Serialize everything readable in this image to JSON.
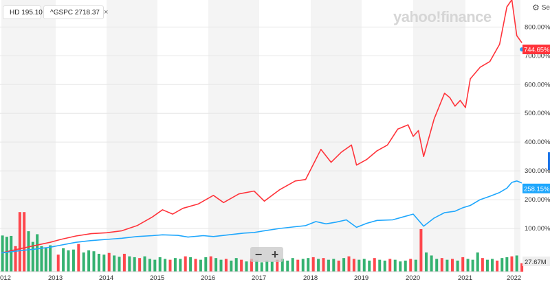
{
  "legend": [
    {
      "symbol": "HD",
      "value": "195.10",
      "color": "#ff333a"
    },
    {
      "symbol": "^GSPC",
      "value": "2718.37",
      "color": "#1ea7fd",
      "close": "×"
    }
  ],
  "brand": "yahoo!finance",
  "settings_label": "Set",
  "zoom": {
    "minus": "−",
    "plus": "+"
  },
  "volume_label": "27.67M",
  "chart_data": {
    "type": "line",
    "x_ticks": [
      "012",
      "2013",
      "2014",
      "2015",
      "2016",
      "2017",
      "2018",
      "2019",
      "2020",
      "2021",
      "2022"
    ],
    "y_ticks": [
      "100.00%",
      "200.00%",
      "300.00%",
      "400.00%",
      "500.00%",
      "600.00%",
      "700.00%",
      "800.00%"
    ],
    "ylim": [
      0,
      900
    ],
    "xlim": [
      2012.0,
      2022.3
    ],
    "series": [
      {
        "name": "HD",
        "color": "#ff333a",
        "last_label": "744.65%",
        "points": [
          [
            2012.0,
            15
          ],
          [
            2012.3,
            28
          ],
          [
            2012.6,
            40
          ],
          [
            2012.9,
            52
          ],
          [
            2013.1,
            62
          ],
          [
            2013.4,
            74
          ],
          [
            2013.7,
            82
          ],
          [
            2014.0,
            85
          ],
          [
            2014.3,
            92
          ],
          [
            2014.6,
            110
          ],
          [
            2014.9,
            140
          ],
          [
            2015.1,
            165
          ],
          [
            2015.3,
            150
          ],
          [
            2015.5,
            170
          ],
          [
            2015.8,
            185
          ],
          [
            2016.1,
            215
          ],
          [
            2016.3,
            190
          ],
          [
            2016.6,
            220
          ],
          [
            2016.9,
            230
          ],
          [
            2017.1,
            195
          ],
          [
            2017.4,
            235
          ],
          [
            2017.7,
            265
          ],
          [
            2017.9,
            270
          ],
          [
            2018.1,
            340
          ],
          [
            2018.2,
            375
          ],
          [
            2018.4,
            330
          ],
          [
            2018.6,
            365
          ],
          [
            2018.8,
            390
          ],
          [
            2018.9,
            320
          ],
          [
            2019.1,
            340
          ],
          [
            2019.3,
            370
          ],
          [
            2019.5,
            390
          ],
          [
            2019.7,
            445
          ],
          [
            2019.9,
            460
          ],
          [
            2020.0,
            420
          ],
          [
            2020.1,
            440
          ],
          [
            2020.2,
            350
          ],
          [
            2020.4,
            480
          ],
          [
            2020.6,
            570
          ],
          [
            2020.7,
            555
          ],
          [
            2020.8,
            525
          ],
          [
            2020.9,
            545
          ],
          [
            2021.0,
            520
          ],
          [
            2021.1,
            620
          ],
          [
            2021.3,
            660
          ],
          [
            2021.5,
            680
          ],
          [
            2021.7,
            740
          ],
          [
            2021.85,
            870
          ],
          [
            2021.95,
            895
          ],
          [
            2022.05,
            770
          ],
          [
            2022.15,
            745
          ]
        ]
      },
      {
        "name": "^GSPC",
        "color": "#1ea7fd",
        "last_label": "258.15%",
        "points": [
          [
            2012.0,
            15
          ],
          [
            2012.3,
            22
          ],
          [
            2012.6,
            28
          ],
          [
            2012.9,
            35
          ],
          [
            2013.1,
            42
          ],
          [
            2013.4,
            52
          ],
          [
            2013.7,
            58
          ],
          [
            2014.0,
            62
          ],
          [
            2014.3,
            66
          ],
          [
            2014.6,
            72
          ],
          [
            2014.9,
            75
          ],
          [
            2015.1,
            78
          ],
          [
            2015.4,
            76
          ],
          [
            2015.6,
            70
          ],
          [
            2015.9,
            75
          ],
          [
            2016.1,
            72
          ],
          [
            2016.4,
            78
          ],
          [
            2016.7,
            84
          ],
          [
            2016.9,
            86
          ],
          [
            2017.1,
            92
          ],
          [
            2017.4,
            100
          ],
          [
            2017.7,
            106
          ],
          [
            2017.9,
            110
          ],
          [
            2018.1,
            124
          ],
          [
            2018.3,
            116
          ],
          [
            2018.5,
            122
          ],
          [
            2018.7,
            130
          ],
          [
            2018.9,
            104
          ],
          [
            2019.1,
            118
          ],
          [
            2019.3,
            128
          ],
          [
            2019.6,
            130
          ],
          [
            2019.8,
            140
          ],
          [
            2020.0,
            150
          ],
          [
            2020.2,
            108
          ],
          [
            2020.4,
            136
          ],
          [
            2020.6,
            155
          ],
          [
            2020.8,
            160
          ],
          [
            2020.95,
            172
          ],
          [
            2021.1,
            180
          ],
          [
            2021.3,
            200
          ],
          [
            2021.5,
            212
          ],
          [
            2021.7,
            225
          ],
          [
            2021.85,
            240
          ],
          [
            2021.95,
            260
          ],
          [
            2022.05,
            265
          ],
          [
            2022.15,
            258
          ]
        ]
      }
    ],
    "volume": {
      "label": "27.67M",
      "bars": [
        {
          "x": 2012.02,
          "v": 85,
          "c": "g"
        },
        {
          "x": 2012.1,
          "v": 82,
          "c": "g"
        },
        {
          "x": 2012.18,
          "v": 84,
          "c": "g"
        },
        {
          "x": 2012.26,
          "v": 60,
          "c": "r"
        },
        {
          "x": 2012.34,
          "v": 140,
          "c": "r"
        },
        {
          "x": 2012.42,
          "v": 140,
          "c": "r"
        },
        {
          "x": 2012.5,
          "v": 95,
          "c": "g"
        },
        {
          "x": 2012.58,
          "v": 70,
          "c": "g"
        },
        {
          "x": 2012.66,
          "v": 88,
          "c": "g"
        },
        {
          "x": 2012.74,
          "v": 60,
          "c": "g"
        },
        {
          "x": 2012.82,
          "v": 55,
          "c": "g"
        },
        {
          "x": 2012.9,
          "v": 62,
          "c": "g"
        },
        {
          "x": 2013.05,
          "v": 40,
          "c": "r"
        },
        {
          "x": 2013.15,
          "v": 55,
          "c": "g"
        },
        {
          "x": 2013.25,
          "v": 50,
          "c": "g"
        },
        {
          "x": 2013.35,
          "v": 52,
          "c": "g"
        },
        {
          "x": 2013.45,
          "v": 65,
          "c": "r"
        },
        {
          "x": 2013.55,
          "v": 45,
          "c": "g"
        },
        {
          "x": 2013.65,
          "v": 50,
          "c": "g"
        },
        {
          "x": 2013.75,
          "v": 48,
          "c": "g"
        },
        {
          "x": 2013.85,
          "v": 42,
          "c": "g"
        },
        {
          "x": 2013.95,
          "v": 40,
          "c": "g"
        },
        {
          "x": 2014.05,
          "v": 44,
          "c": "r"
        },
        {
          "x": 2014.15,
          "v": 38,
          "c": "g"
        },
        {
          "x": 2014.25,
          "v": 35,
          "c": "g"
        },
        {
          "x": 2014.35,
          "v": 42,
          "c": "r"
        },
        {
          "x": 2014.45,
          "v": 36,
          "c": "g"
        },
        {
          "x": 2014.55,
          "v": 34,
          "c": "g"
        },
        {
          "x": 2014.65,
          "v": 32,
          "c": "r"
        },
        {
          "x": 2014.75,
          "v": 36,
          "c": "g"
        },
        {
          "x": 2014.85,
          "v": 30,
          "c": "g"
        },
        {
          "x": 2014.95,
          "v": 28,
          "c": "g"
        },
        {
          "x": 2015.05,
          "v": 34,
          "c": "g"
        },
        {
          "x": 2015.15,
          "v": 30,
          "c": "g"
        },
        {
          "x": 2015.25,
          "v": 28,
          "c": "r"
        },
        {
          "x": 2015.35,
          "v": 32,
          "c": "g"
        },
        {
          "x": 2015.45,
          "v": 30,
          "c": "g"
        },
        {
          "x": 2015.55,
          "v": 36,
          "c": "r"
        },
        {
          "x": 2015.65,
          "v": 34,
          "c": "g"
        },
        {
          "x": 2015.75,
          "v": 30,
          "c": "r"
        },
        {
          "x": 2015.85,
          "v": 28,
          "c": "g"
        },
        {
          "x": 2015.95,
          "v": 34,
          "c": "g"
        },
        {
          "x": 2016.05,
          "v": 36,
          "c": "r"
        },
        {
          "x": 2016.15,
          "v": 32,
          "c": "g"
        },
        {
          "x": 2016.25,
          "v": 28,
          "c": "g"
        },
        {
          "x": 2016.35,
          "v": 30,
          "c": "r"
        },
        {
          "x": 2016.45,
          "v": 26,
          "c": "g"
        },
        {
          "x": 2016.55,
          "v": 32,
          "c": "g"
        },
        {
          "x": 2016.65,
          "v": 28,
          "c": "r"
        },
        {
          "x": 2016.75,
          "v": 24,
          "c": "g"
        },
        {
          "x": 2016.85,
          "v": 30,
          "c": "r"
        },
        {
          "x": 2016.95,
          "v": 26,
          "c": "g"
        },
        {
          "x": 2017.05,
          "v": 22,
          "c": "g"
        },
        {
          "x": 2017.15,
          "v": 26,
          "c": "g"
        },
        {
          "x": 2017.25,
          "v": 24,
          "c": "g"
        },
        {
          "x": 2017.35,
          "v": 28,
          "c": "r"
        },
        {
          "x": 2017.45,
          "v": 30,
          "c": "g"
        },
        {
          "x": 2017.55,
          "v": 26,
          "c": "g"
        },
        {
          "x": 2017.65,
          "v": 32,
          "c": "g"
        },
        {
          "x": 2017.75,
          "v": 28,
          "c": "r"
        },
        {
          "x": 2017.85,
          "v": 30,
          "c": "g"
        },
        {
          "x": 2017.95,
          "v": 32,
          "c": "g"
        },
        {
          "x": 2018.05,
          "v": 34,
          "c": "r"
        },
        {
          "x": 2018.15,
          "v": 30,
          "c": "g"
        },
        {
          "x": 2018.25,
          "v": 32,
          "c": "r"
        },
        {
          "x": 2018.35,
          "v": 28,
          "c": "g"
        },
        {
          "x": 2018.45,
          "v": 30,
          "c": "g"
        },
        {
          "x": 2018.55,
          "v": 26,
          "c": "r"
        },
        {
          "x": 2018.65,
          "v": 32,
          "c": "g"
        },
        {
          "x": 2018.75,
          "v": 36,
          "c": "r"
        },
        {
          "x": 2018.85,
          "v": 30,
          "c": "r"
        },
        {
          "x": 2018.95,
          "v": 28,
          "c": "g"
        },
        {
          "x": 2019.05,
          "v": 30,
          "c": "g"
        },
        {
          "x": 2019.15,
          "v": 26,
          "c": "g"
        },
        {
          "x": 2019.25,
          "v": 32,
          "c": "r"
        },
        {
          "x": 2019.35,
          "v": 28,
          "c": "g"
        },
        {
          "x": 2019.45,
          "v": 26,
          "c": "g"
        },
        {
          "x": 2019.55,
          "v": 30,
          "c": "r"
        },
        {
          "x": 2019.65,
          "v": 28,
          "c": "g"
        },
        {
          "x": 2019.75,
          "v": 24,
          "c": "g"
        },
        {
          "x": 2019.85,
          "v": 26,
          "c": "g"
        },
        {
          "x": 2019.95,
          "v": 30,
          "c": "r"
        },
        {
          "x": 2020.05,
          "v": 28,
          "c": "g"
        },
        {
          "x": 2020.15,
          "v": 100,
          "c": "r"
        },
        {
          "x": 2020.25,
          "v": 45,
          "c": "g"
        },
        {
          "x": 2020.35,
          "v": 38,
          "c": "g"
        },
        {
          "x": 2020.45,
          "v": 30,
          "c": "g"
        },
        {
          "x": 2020.55,
          "v": 32,
          "c": "r"
        },
        {
          "x": 2020.65,
          "v": 28,
          "c": "g"
        },
        {
          "x": 2020.75,
          "v": 30,
          "c": "r"
        },
        {
          "x": 2020.85,
          "v": 26,
          "c": "g"
        },
        {
          "x": 2020.95,
          "v": 34,
          "c": "r"
        },
        {
          "x": 2021.05,
          "v": 30,
          "c": "g"
        },
        {
          "x": 2021.15,
          "v": 28,
          "c": "g"
        },
        {
          "x": 2021.25,
          "v": 45,
          "c": "g"
        },
        {
          "x": 2021.35,
          "v": 32,
          "c": "r"
        },
        {
          "x": 2021.45,
          "v": 28,
          "c": "g"
        },
        {
          "x": 2021.55,
          "v": 30,
          "c": "g"
        },
        {
          "x": 2021.65,
          "v": 26,
          "c": "r"
        },
        {
          "x": 2021.75,
          "v": 32,
          "c": "g"
        },
        {
          "x": 2021.85,
          "v": 34,
          "c": "g"
        },
        {
          "x": 2021.95,
          "v": 36,
          "c": "r"
        },
        {
          "x": 2022.05,
          "v": 38,
          "c": "g"
        },
        {
          "x": 2022.15,
          "v": 20,
          "c": "r"
        }
      ]
    },
    "band_starts": [
      2012.0,
      2013.0,
      2014.0,
      2015.0,
      2016.0,
      2017.0,
      2018.0,
      2019.0,
      2020.0,
      2021.0,
      2022.0
    ]
  }
}
